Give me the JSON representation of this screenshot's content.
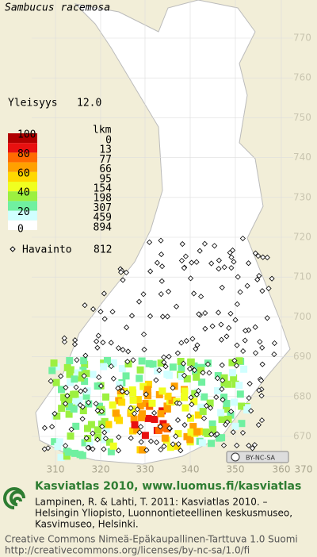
{
  "title": "Sambucus racemosa",
  "frequency": {
    "label": "Yleisyys",
    "value": "12.0"
  },
  "legend": {
    "count_header": "lkm",
    "percent_labels": [
      100,
      80,
      60,
      40,
      20,
      0
    ],
    "colors": [
      "#b00000",
      "#e81010",
      "#ff6a00",
      "#ffa000",
      "#ffd800",
      "#f0ff20",
      "#9cf040",
      "#70f0a0",
      "#d0ffff",
      "#ffffff"
    ],
    "counts": [
      0,
      13,
      77,
      66,
      95,
      154,
      198,
      307,
      459,
      894
    ]
  },
  "observations": {
    "label": "Havainto",
    "value": 812
  },
  "y_labels": [
    770,
    760,
    750,
    740,
    730,
    720,
    710,
    700,
    690,
    680,
    670
  ],
  "x_labels": [
    310,
    320,
    330,
    340,
    350,
    360,
    370
  ],
  "license_badge": "BY-NC-SA",
  "footer": {
    "heading": "Kasviatlas 2010, www.luomus.fi/kasviatlas",
    "citation": [
      "Lampinen, R. & Lahti, T. 2011: Kasviatlas 2010. –",
      "Helsingin Yliopisto, Luonnontieteellinen keskusmuseo,",
      "Kasvimuseo, Helsinki."
    ],
    "license": [
      "Creative Commons Nimeä-Epäkaupallinen-Tarttuva 1.0 Suomi",
      "http://creativecommons.org/licenses/by-nc-sa/1.0/fi"
    ]
  }
}
